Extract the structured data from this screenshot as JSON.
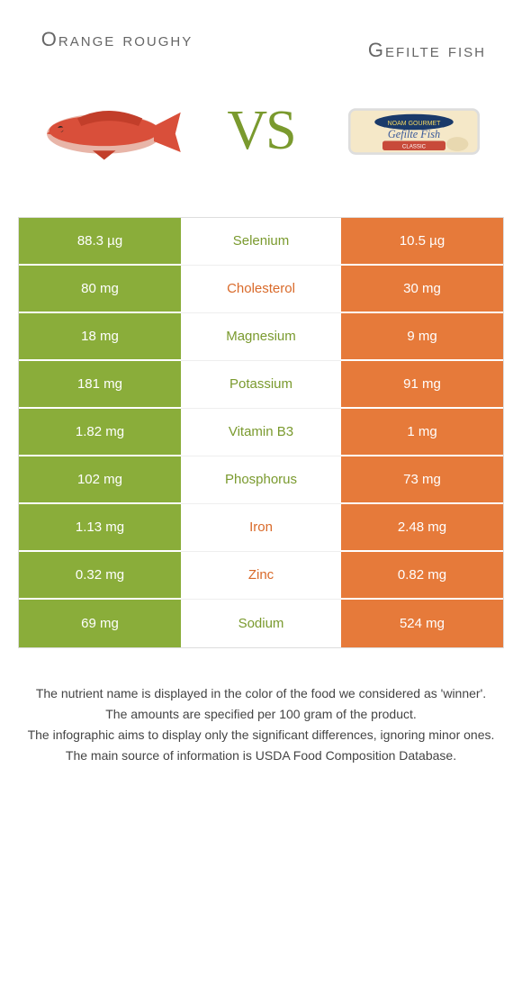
{
  "colors": {
    "left": "#8aad3a",
    "right": "#e67a3a",
    "left_text": "#7a9a2e",
    "right_text": "#d96a2a"
  },
  "foods": {
    "left": "Orange roughy",
    "right": "Gefilte fish"
  },
  "vs": "VS",
  "rows": [
    {
      "left": "88.3 µg",
      "name": "Selenium",
      "right": "10.5 µg",
      "winner": "left"
    },
    {
      "left": "80 mg",
      "name": "Cholesterol",
      "right": "30 mg",
      "winner": "right"
    },
    {
      "left": "18 mg",
      "name": "Magnesium",
      "right": "9 mg",
      "winner": "left"
    },
    {
      "left": "181 mg",
      "name": "Potassium",
      "right": "91 mg",
      "winner": "left"
    },
    {
      "left": "1.82 mg",
      "name": "Vitamin B3",
      "right": "1 mg",
      "winner": "left"
    },
    {
      "left": "102 mg",
      "name": "Phosphorus",
      "right": "73 mg",
      "winner": "left"
    },
    {
      "left": "1.13 mg",
      "name": "Iron",
      "right": "2.48 mg",
      "winner": "right"
    },
    {
      "left": "0.32 mg",
      "name": "Zinc",
      "right": "0.82 mg",
      "winner": "right"
    },
    {
      "left": "69 mg",
      "name": "Sodium",
      "right": "524 mg",
      "winner": "left"
    }
  ],
  "footer": [
    "The nutrient name is displayed in the color of the food we considered as 'winner'.",
    "The amounts are specified per 100 gram of the product.",
    "The infographic aims to display only the significant differences, ignoring minor ones.",
    "The main source of information is USDA Food Composition Database."
  ]
}
